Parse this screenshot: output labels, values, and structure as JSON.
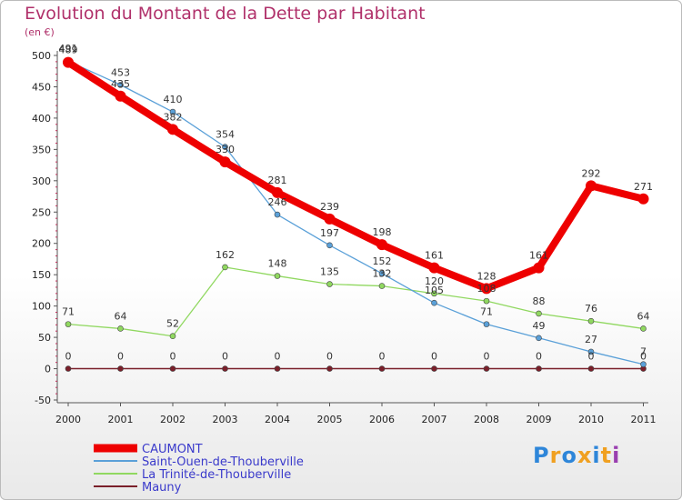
{
  "title": "Evolution du Montant de la Dette par Habitant",
  "subtitle": "(en €)",
  "logo": {
    "letters": [
      "P",
      "r",
      "o",
      "x",
      "i",
      "t",
      "i"
    ],
    "colors": [
      "#2e86d9",
      "#f0a020",
      "#2e86d9",
      "#f0a020",
      "#2e86d9",
      "#f0a020",
      "#9a3fb0"
    ]
  },
  "chart_data": {
    "type": "line",
    "x": [
      "2000",
      "2001",
      "2002",
      "2003",
      "2004",
      "2005",
      "2006",
      "2007",
      "2008",
      "2009",
      "2010",
      "2011"
    ],
    "ylim": [
      -50,
      500
    ],
    "yticks": [
      "-50",
      "0",
      "50",
      "100",
      "150",
      "200",
      "250",
      "300",
      "350",
      "400",
      "450",
      "500"
    ],
    "grid": false,
    "legend_position": "bottom-left",
    "series": [
      {
        "name": "Mauny",
        "color": "#7a1f2a",
        "values": [
          0,
          0,
          0,
          0,
          0,
          0,
          0,
          0,
          0,
          0,
          0,
          0
        ],
        "labels": [
          "0",
          "0",
          "0",
          "0",
          "0",
          "0",
          "0",
          "0",
          "0",
          "0",
          "0",
          "0"
        ]
      },
      {
        "name": "La Trinité-de-Thouberville",
        "color": "#90d860",
        "values": [
          71,
          64,
          52,
          162,
          148,
          135,
          132,
          120,
          108,
          88,
          76,
          64
        ],
        "labels": [
          "71",
          "64",
          "52",
          "162",
          "148",
          "135",
          "132",
          "120",
          "108",
          "88",
          "76",
          "64"
        ]
      },
      {
        "name": "Saint-Ouen-de-Thouberville",
        "color": "#5aa0d8",
        "values": [
          491,
          453,
          410,
          354,
          246,
          197,
          152,
          105,
          71,
          49,
          27,
          7
        ],
        "labels": [
          "491",
          "453",
          "410",
          "354",
          "246",
          "197",
          "152",
          "105",
          "71",
          "49",
          "27",
          "7"
        ]
      },
      {
        "name": "CAUMONT",
        "color": "#ee0000",
        "values": [
          489,
          435,
          382,
          330,
          281,
          239,
          198,
          161,
          128,
          161,
          292,
          271
        ],
        "labels": [
          "489",
          "435",
          "382",
          "330",
          "281",
          "239",
          "198",
          "161",
          "128",
          "161",
          "292",
          "271"
        ]
      }
    ],
    "legend": [
      "CAUMONT",
      "Saint-Ouen-de-Thouberville",
      "La Trinité-de-Thouberville",
      "Mauny"
    ]
  }
}
